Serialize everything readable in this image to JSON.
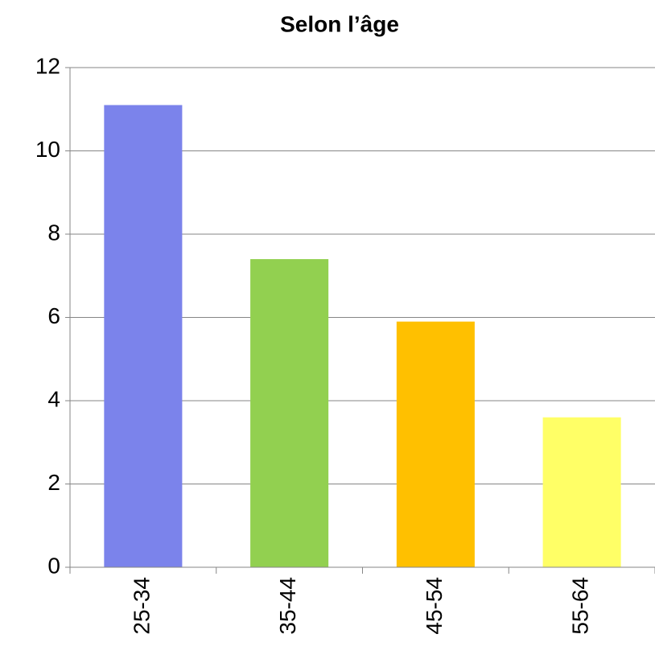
{
  "chart_data": {
    "type": "bar",
    "title": "Selon l’âge",
    "categories": [
      "25-34",
      "35-44",
      "45-54",
      "55-64"
    ],
    "values": [
      11.1,
      7.4,
      5.9,
      3.6
    ],
    "colors": [
      "#7b83eb",
      "#92d050",
      "#ffc000",
      "#ffff66"
    ],
    "ylim": [
      0,
      12
    ],
    "yticks": [
      0,
      2,
      4,
      6,
      8,
      10,
      12
    ],
    "grid": true
  }
}
